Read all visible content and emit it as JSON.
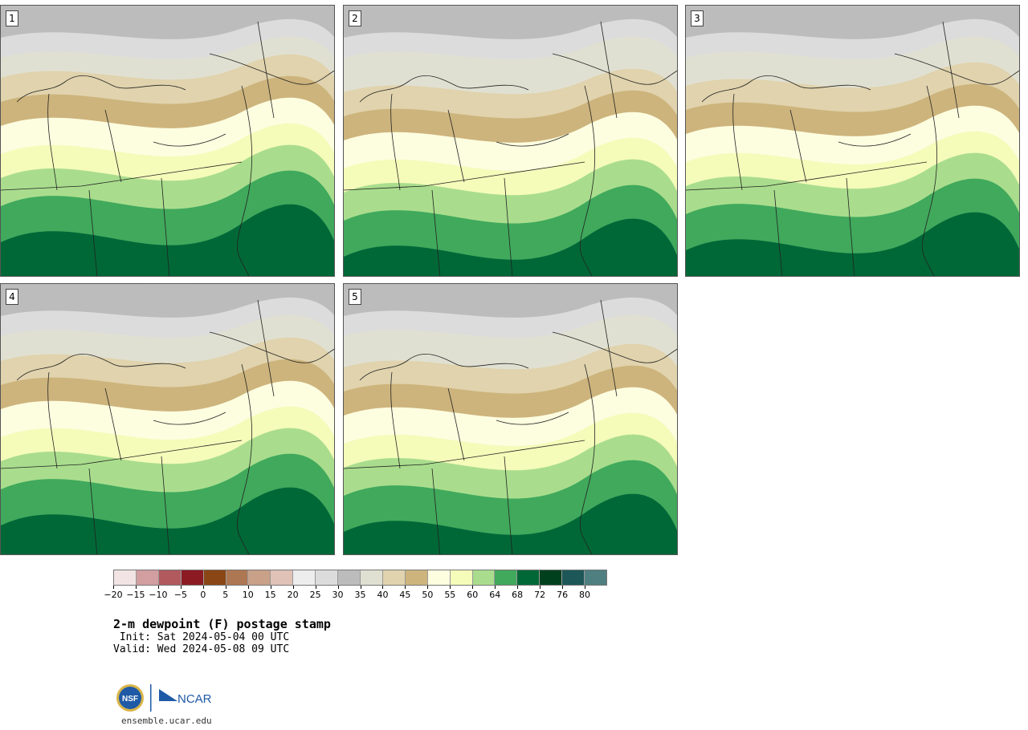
{
  "panels": [
    {
      "label": "1"
    },
    {
      "label": "2"
    },
    {
      "label": "3"
    },
    {
      "label": "4"
    },
    {
      "label": "5"
    }
  ],
  "colorbar": {
    "colors": [
      "#f2e4e4",
      "#d29ea0",
      "#b05a5e",
      "#8c1a22",
      "#8a4614",
      "#ae7753",
      "#c9a088",
      "#e0c2b6",
      "#ededed",
      "#dcdcdc",
      "#bcbcbc",
      "#e0e0d2",
      "#e0d3ad",
      "#cdb47c",
      "#fdfde0",
      "#f5fbb9",
      "#a9dd8d",
      "#40a95c",
      "#006837",
      "#01401d",
      "#1d5758",
      "#4f7f80"
    ],
    "tick_labels": [
      "−20",
      "−15",
      "−10",
      "−5",
      "0",
      "5",
      "10",
      "15",
      "20",
      "25",
      "30",
      "35",
      "40",
      "45",
      "50",
      "55",
      "60",
      "64",
      "68",
      "72",
      "76",
      "80"
    ]
  },
  "title": {
    "main": "2-m dewpoint (F) postage stamp",
    "init": " Init: Sat 2024-05-04 00 UTC",
    "valid": "Valid: Wed 2024-05-08 09 UTC"
  },
  "logo": {
    "nsf_text": "NSF",
    "ncar_text": "NCAR"
  },
  "footer": {
    "url": "ensemble.ucar.edu"
  }
}
